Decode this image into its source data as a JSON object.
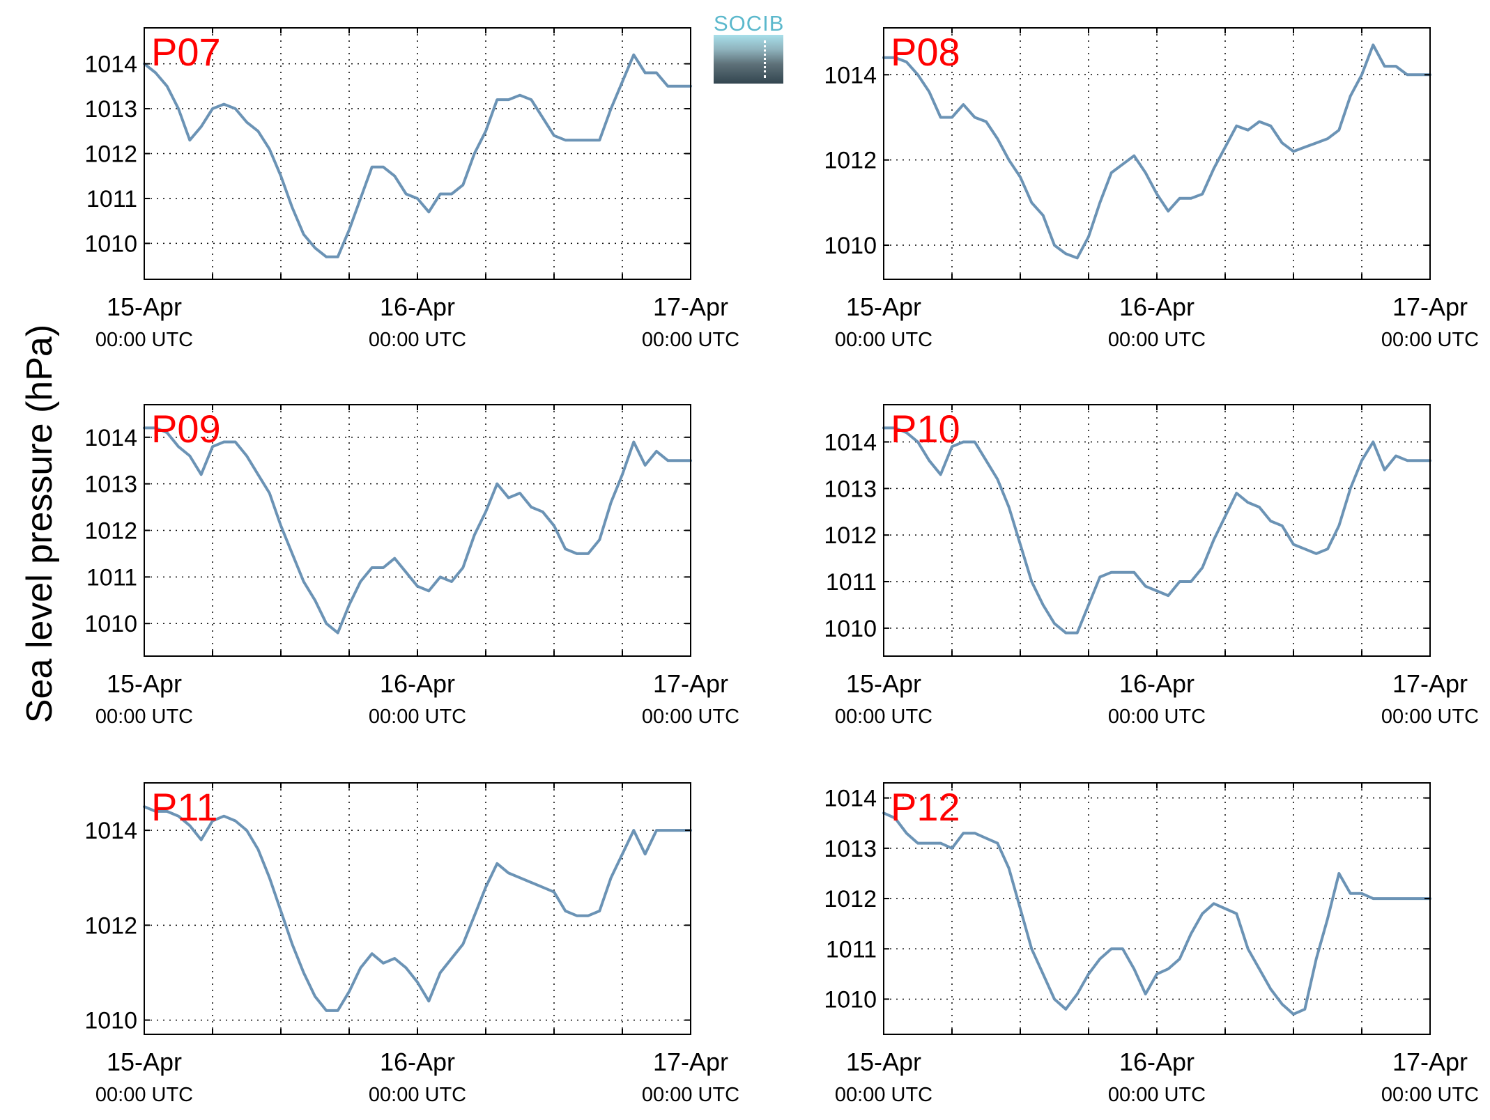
{
  "figure": {
    "ylabel": "Sea level pressure (hPa)",
    "logo_text": "SOCIB",
    "colors": {
      "line": "#6b93b5",
      "station_label": "#ff0000",
      "axes": "#000000"
    }
  },
  "chart_data": [
    {
      "type": "line",
      "station": "P07",
      "xlabel_ticks": [
        {
          "day": "15-Apr",
          "time": "00:00 UTC"
        },
        {
          "day": "16-Apr",
          "time": "00:00 UTC"
        },
        {
          "day": "17-Apr",
          "time": "00:00 UTC"
        }
      ],
      "xlim_hours": [
        0,
        48
      ],
      "ylim": [
        1009.2,
        1014.8
      ],
      "yticks": [
        1010,
        1011,
        1012,
        1013,
        1014
      ],
      "grid": true,
      "x": [
        0,
        1,
        2,
        3,
        4,
        5,
        6,
        7,
        8,
        9,
        10,
        11,
        12,
        13,
        14,
        15,
        16,
        17,
        18,
        19,
        20,
        21,
        22,
        23,
        24,
        25,
        26,
        27,
        28,
        29,
        30,
        31,
        32,
        33,
        34,
        35,
        36,
        37,
        38,
        39,
        40,
        41,
        42,
        43,
        44,
        45,
        46,
        47,
        48
      ],
      "y": [
        1014.0,
        1013.8,
        1013.5,
        1013.0,
        1012.3,
        1012.6,
        1013.0,
        1013.1,
        1013.0,
        1012.7,
        1012.5,
        1012.1,
        1011.5,
        1010.8,
        1010.2,
        1009.9,
        1009.7,
        1009.7,
        1010.3,
        1011.0,
        1011.7,
        1011.7,
        1011.5,
        1011.1,
        1011.0,
        1010.7,
        1011.1,
        1011.1,
        1011.3,
        1012.0,
        1012.5,
        1013.2,
        1013.2,
        1013.3,
        1013.2,
        1012.8,
        1012.4,
        1012.3,
        1012.3,
        1012.3,
        1012.3,
        1013.0,
        1013.6,
        1014.2,
        1013.8,
        1013.8,
        1013.5,
        1013.5,
        1013.5
      ]
    },
    {
      "type": "line",
      "station": "P08",
      "xlabel_ticks": [
        {
          "day": "15-Apr",
          "time": "00:00 UTC"
        },
        {
          "day": "16-Apr",
          "time": "00:00 UTC"
        },
        {
          "day": "17-Apr",
          "time": "00:00 UTC"
        }
      ],
      "xlim_hours": [
        0,
        48
      ],
      "ylim": [
        1009.2,
        1015.1
      ],
      "yticks": [
        1010,
        1012,
        1014
      ],
      "grid": true,
      "x": [
        0,
        1,
        2,
        3,
        4,
        5,
        6,
        7,
        8,
        9,
        10,
        11,
        12,
        13,
        14,
        15,
        16,
        17,
        18,
        19,
        20,
        21,
        22,
        23,
        24,
        25,
        26,
        27,
        28,
        29,
        30,
        31,
        32,
        33,
        34,
        35,
        36,
        37,
        38,
        39,
        40,
        41,
        42,
        43,
        44,
        45,
        46,
        47,
        48
      ],
      "y": [
        1014.4,
        1014.4,
        1014.3,
        1014.0,
        1013.6,
        1013.0,
        1013.0,
        1013.3,
        1013.0,
        1012.9,
        1012.5,
        1012.0,
        1011.6,
        1011.0,
        1010.7,
        1010.0,
        1009.8,
        1009.7,
        1010.2,
        1011.0,
        1011.7,
        1011.9,
        1012.1,
        1011.7,
        1011.2,
        1010.8,
        1011.1,
        1011.1,
        1011.2,
        1011.8,
        1012.3,
        1012.8,
        1012.7,
        1012.9,
        1012.8,
        1012.4,
        1012.2,
        1012.3,
        1012.4,
        1012.5,
        1012.7,
        1013.5,
        1014.0,
        1014.7,
        1014.2,
        1014.2,
        1014.0,
        1014.0,
        1014.0
      ]
    },
    {
      "type": "line",
      "station": "P09",
      "xlabel_ticks": [
        {
          "day": "15-Apr",
          "time": "00:00 UTC"
        },
        {
          "day": "16-Apr",
          "time": "00:00 UTC"
        },
        {
          "day": "17-Apr",
          "time": "00:00 UTC"
        }
      ],
      "xlim_hours": [
        0,
        48
      ],
      "ylim": [
        1009.3,
        1014.7
      ],
      "yticks": [
        1010,
        1011,
        1012,
        1013,
        1014
      ],
      "grid": true,
      "x": [
        0,
        1,
        2,
        3,
        4,
        5,
        6,
        7,
        8,
        9,
        10,
        11,
        12,
        13,
        14,
        15,
        16,
        17,
        18,
        19,
        20,
        21,
        22,
        23,
        24,
        25,
        26,
        27,
        28,
        29,
        30,
        31,
        32,
        33,
        34,
        35,
        36,
        37,
        38,
        39,
        40,
        41,
        42,
        43,
        44,
        45,
        46,
        47,
        48
      ],
      "y": [
        1014.2,
        1014.2,
        1014.1,
        1013.8,
        1013.6,
        1013.2,
        1013.8,
        1013.9,
        1013.9,
        1013.6,
        1013.2,
        1012.8,
        1012.1,
        1011.5,
        1010.9,
        1010.5,
        1010.0,
        1009.8,
        1010.4,
        1010.9,
        1011.2,
        1011.2,
        1011.4,
        1011.1,
        1010.8,
        1010.7,
        1011.0,
        1010.9,
        1011.2,
        1011.9,
        1012.4,
        1013.0,
        1012.7,
        1012.8,
        1012.5,
        1012.4,
        1012.1,
        1011.6,
        1011.5,
        1011.5,
        1011.8,
        1012.6,
        1013.2,
        1013.9,
        1013.4,
        1013.7,
        1013.5,
        1013.5,
        1013.5
      ]
    },
    {
      "type": "line",
      "station": "P10",
      "xlabel_ticks": [
        {
          "day": "15-Apr",
          "time": "00:00 UTC"
        },
        {
          "day": "16-Apr",
          "time": "00:00 UTC"
        },
        {
          "day": "17-Apr",
          "time": "00:00 UTC"
        }
      ],
      "xlim_hours": [
        0,
        48
      ],
      "ylim": [
        1009.4,
        1014.8
      ],
      "yticks": [
        1010,
        1011,
        1012,
        1013,
        1014
      ],
      "grid": true,
      "x": [
        0,
        1,
        2,
        3,
        4,
        5,
        6,
        7,
        8,
        9,
        10,
        11,
        12,
        13,
        14,
        15,
        16,
        17,
        18,
        19,
        20,
        21,
        22,
        23,
        24,
        25,
        26,
        27,
        28,
        29,
        30,
        31,
        32,
        33,
        34,
        35,
        36,
        37,
        38,
        39,
        40,
        41,
        42,
        43,
        44,
        45,
        46,
        47,
        48
      ],
      "y": [
        1014.3,
        1014.3,
        1014.2,
        1014.0,
        1013.6,
        1013.3,
        1013.9,
        1014.0,
        1014.0,
        1013.6,
        1013.2,
        1012.6,
        1011.8,
        1011.0,
        1010.5,
        1010.1,
        1009.9,
        1009.9,
        1010.5,
        1011.1,
        1011.2,
        1011.2,
        1011.2,
        1010.9,
        1010.8,
        1010.7,
        1011.0,
        1011.0,
        1011.3,
        1011.9,
        1012.4,
        1012.9,
        1012.7,
        1012.6,
        1012.3,
        1012.2,
        1011.8,
        1011.7,
        1011.6,
        1011.7,
        1012.2,
        1013.0,
        1013.6,
        1014.0,
        1013.4,
        1013.7,
        1013.6,
        1013.6,
        1013.6
      ]
    },
    {
      "type": "line",
      "station": "P11",
      "xlabel_ticks": [
        {
          "day": "15-Apr",
          "time": "00:00 UTC"
        },
        {
          "day": "16-Apr",
          "time": "00:00 UTC"
        },
        {
          "day": "17-Apr",
          "time": "00:00 UTC"
        }
      ],
      "xlim_hours": [
        0,
        48
      ],
      "ylim": [
        1009.7,
        1015.0
      ],
      "yticks": [
        1010,
        1012,
        1014
      ],
      "grid": true,
      "x": [
        0,
        1,
        2,
        3,
        4,
        5,
        6,
        7,
        8,
        9,
        10,
        11,
        12,
        13,
        14,
        15,
        16,
        17,
        18,
        19,
        20,
        21,
        22,
        23,
        24,
        25,
        26,
        27,
        28,
        29,
        30,
        31,
        32,
        33,
        34,
        35,
        36,
        37,
        38,
        39,
        40,
        41,
        42,
        43,
        44,
        45,
        46,
        47,
        48
      ],
      "y": [
        1014.5,
        1014.4,
        1014.4,
        1014.3,
        1014.1,
        1013.8,
        1014.2,
        1014.3,
        1014.2,
        1014.0,
        1013.6,
        1013.0,
        1012.3,
        1011.6,
        1011.0,
        1010.5,
        1010.2,
        1010.2,
        1010.6,
        1011.1,
        1011.4,
        1011.2,
        1011.3,
        1011.1,
        1010.8,
        1010.4,
        1011.0,
        1011.3,
        1011.6,
        1012.2,
        1012.8,
        1013.3,
        1013.1,
        1013.0,
        1012.9,
        1012.8,
        1012.7,
        1012.3,
        1012.2,
        1012.2,
        1012.3,
        1013.0,
        1013.5,
        1014.0,
        1013.5,
        1014.0,
        1014.0,
        1014.0,
        1014.0
      ]
    },
    {
      "type": "line",
      "station": "P12",
      "xlabel_ticks": [
        {
          "day": "15-Apr",
          "time": "00:00 UTC"
        },
        {
          "day": "16-Apr",
          "time": "00:00 UTC"
        },
        {
          "day": "17-Apr",
          "time": "00:00 UTC"
        }
      ],
      "xlim_hours": [
        0,
        48
      ],
      "ylim": [
        1009.3,
        1014.3
      ],
      "yticks": [
        1010,
        1011,
        1012,
        1013,
        1014
      ],
      "grid": true,
      "x": [
        0,
        1,
        2,
        3,
        4,
        5,
        6,
        7,
        8,
        9,
        10,
        11,
        12,
        13,
        14,
        15,
        16,
        17,
        18,
        19,
        20,
        21,
        22,
        23,
        24,
        25,
        26,
        27,
        28,
        29,
        30,
        31,
        32,
        33,
        34,
        35,
        36,
        37,
        38,
        39,
        40,
        41,
        42,
        43,
        44,
        45,
        46,
        47,
        48
      ],
      "y": [
        1013.7,
        1013.6,
        1013.3,
        1013.1,
        1013.1,
        1013.1,
        1013.0,
        1013.3,
        1013.3,
        1013.2,
        1013.1,
        1012.6,
        1011.8,
        1011.0,
        1010.5,
        1010.0,
        1009.8,
        1010.1,
        1010.5,
        1010.8,
        1011.0,
        1011.0,
        1010.6,
        1010.1,
        1010.5,
        1010.6,
        1010.8,
        1011.3,
        1011.7,
        1011.9,
        1011.8,
        1011.7,
        1011.0,
        1010.6,
        1010.2,
        1009.9,
        1009.7,
        1009.8,
        1010.8,
        1011.6,
        1012.5,
        1012.1,
        1012.1,
        1012.0,
        1012.0,
        1012.0,
        1012.0,
        1012.0,
        1012.0
      ]
    }
  ]
}
